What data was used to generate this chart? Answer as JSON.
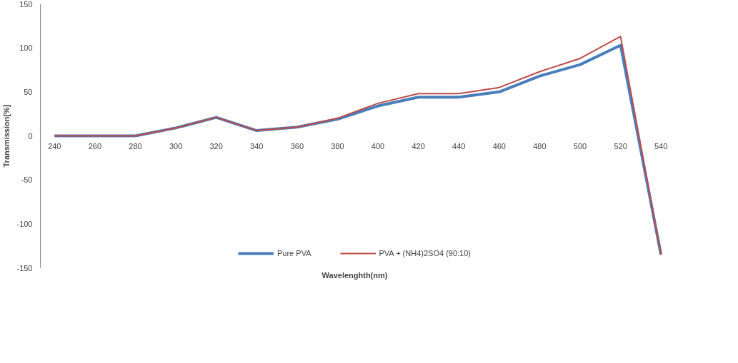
{
  "chart_data": {
    "type": "line",
    "xlabel": "Wavelenghth(nm)",
    "ylabel": "Transmission[%]",
    "categories": [
      "240",
      "260",
      "280",
      "300",
      "320",
      "340",
      "360",
      "380",
      "400",
      "420",
      "440",
      "460",
      "480",
      "500",
      "520",
      "540"
    ],
    "series": [
      {
        "name": "Pure PVA",
        "color": "#4a7ebb",
        "values": [
          0,
          0,
          0,
          9,
          21,
          6,
          10,
          19,
          34,
          44,
          44,
          50,
          68,
          81,
          103,
          -135
        ]
      },
      {
        "name": "PVA + (NH4)2SO4 (90:10)",
        "color": "#be4b48",
        "values": [
          0,
          0,
          0,
          9,
          21,
          6,
          10,
          20,
          37,
          48,
          48,
          55,
          73,
          88,
          113,
          -135
        ]
      }
    ],
    "ylim": [
      -150,
      150
    ],
    "yticks": [
      150,
      100,
      50,
      0,
      -50,
      -100,
      {
        "value": -150,
        "label": "-150"
      }
    ],
    "grid": false,
    "legend": "bottom",
    "marker": "none",
    "line_style": "solid"
  }
}
